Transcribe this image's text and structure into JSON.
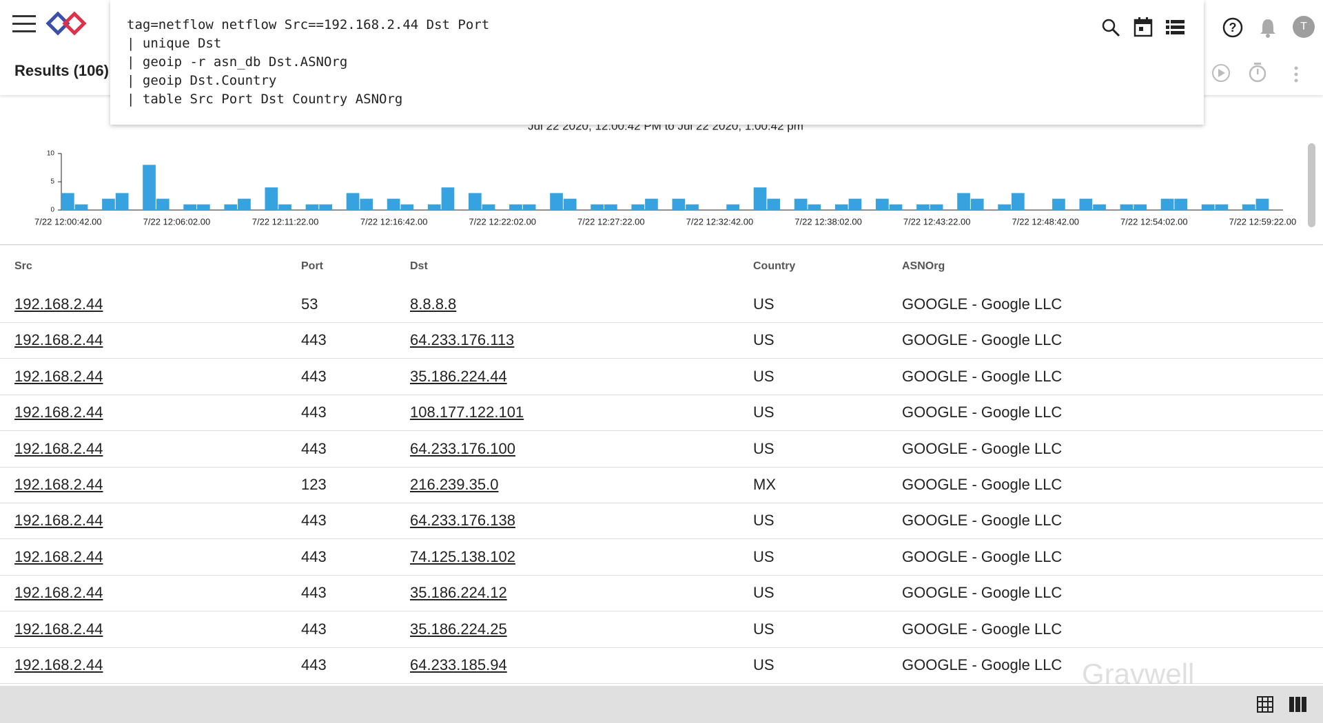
{
  "header": {
    "results": "Results (106)",
    "avatar": "T"
  },
  "query": {
    "lines": [
      "tag=netflow netflow Src==192.168.2.44 Dst Port",
      "| unique Dst",
      "| geoip -r asn_db Dst.ASNOrg",
      "| geoip Dst.Country",
      "| table Src Port Dst Country ASNOrg"
    ]
  },
  "chart_data": {
    "type": "bar",
    "title": "Jul 22 2020, 12:00:42 PM to Jul 22 2020, 1:00:42 pm",
    "color": "#36a3e0",
    "xticks": [
      "7/22 12:00:42.00",
      "7/22 12:06:02.00",
      "7/22 12:11:22.00",
      "7/22 12:16:42.00",
      "7/22 12:22:02.00",
      "7/22 12:27:22.00",
      "7/22 12:32:42.00",
      "7/22 12:38:02.00",
      "7/22 12:43:22.00",
      "7/22 12:48:42.00",
      "7/22 12:54:02.00",
      "7/22 12:59:22.00"
    ],
    "values": [
      3,
      1,
      0,
      2,
      3,
      0,
      8,
      2,
      0,
      1,
      1,
      0,
      1,
      2,
      0,
      4,
      1,
      0,
      1,
      1,
      0,
      3,
      2,
      0,
      2,
      1,
      0,
      1,
      4,
      0,
      3,
      1,
      0,
      1,
      1,
      0,
      3,
      2,
      0,
      1,
      1,
      0,
      1,
      2,
      0,
      2,
      1,
      0,
      0,
      1,
      0,
      4,
      2,
      0,
      2,
      1,
      0,
      1,
      2,
      0,
      2,
      1,
      0,
      1,
      1,
      0,
      3,
      2,
      0,
      1,
      3,
      0,
      0,
      2,
      0,
      2,
      1,
      0,
      1,
      1,
      0,
      2,
      2,
      0,
      1,
      1,
      0,
      1,
      2,
      0
    ],
    "ylim": [
      0,
      10
    ],
    "yticks": [
      0,
      5,
      10
    ]
  },
  "table": {
    "columns": [
      "Src",
      "Port",
      "Dst",
      "Country",
      "ASNOrg"
    ],
    "rows": [
      [
        "192.168.2.44",
        53,
        "8.8.8.8",
        "US",
        "GOOGLE - Google LLC"
      ],
      [
        "192.168.2.44",
        443,
        "64.233.176.113",
        "US",
        "GOOGLE - Google LLC"
      ],
      [
        "192.168.2.44",
        443,
        "35.186.224.44",
        "US",
        "GOOGLE - Google LLC"
      ],
      [
        "192.168.2.44",
        443,
        "108.177.122.101",
        "US",
        "GOOGLE - Google LLC"
      ],
      [
        "192.168.2.44",
        443,
        "64.233.176.100",
        "US",
        "GOOGLE - Google LLC"
      ],
      [
        "192.168.2.44",
        123,
        "216.239.35.0",
        "MX",
        "GOOGLE - Google LLC"
      ],
      [
        "192.168.2.44",
        443,
        "64.233.176.138",
        "US",
        "GOOGLE - Google LLC"
      ],
      [
        "192.168.2.44",
        443,
        "74.125.138.102",
        "US",
        "GOOGLE - Google LLC"
      ],
      [
        "192.168.2.44",
        443,
        "35.186.224.12",
        "US",
        "GOOGLE - Google LLC"
      ],
      [
        "192.168.2.44",
        443,
        "35.186.224.25",
        "US",
        "GOOGLE - Google LLC"
      ],
      [
        "192.168.2.44",
        443,
        "64.233.185.94",
        "US",
        "GOOGLE - Google LLC"
      ]
    ]
  },
  "watermark": "Gravwell"
}
